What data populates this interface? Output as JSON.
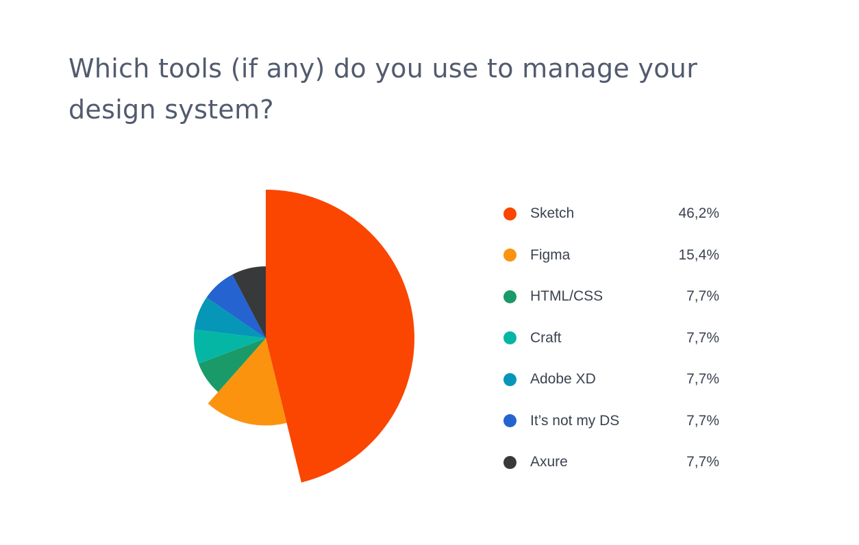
{
  "chart_data": {
    "type": "pie",
    "title": "Which tools (if any) do you use to manage your design system?",
    "legend_placement": "right",
    "slices": [
      {
        "label": "Sketch",
        "value": 46.2,
        "display": "46,2%",
        "color": "#fa4600"
      },
      {
        "label": "Figma",
        "value": 15.4,
        "display": "15,4%",
        "color": "#fb930f"
      },
      {
        "label": "HTML/CSS",
        "value": 7.7,
        "display": "7,7%",
        "color": "#1a9a68"
      },
      {
        "label": "Craft",
        "value": 7.7,
        "display": "7,7%",
        "color": "#06b6a5"
      },
      {
        "label": "Adobe XD",
        "value": 7.7,
        "display": "7,7%",
        "color": "#0696b8"
      },
      {
        "label": "It’s not my DS",
        "value": 7.7,
        "display": "7,7%",
        "color": "#2463d0"
      },
      {
        "label": "Axure",
        "value": 7.7,
        "display": "7,7%",
        "color": "#38393b"
      }
    ]
  }
}
